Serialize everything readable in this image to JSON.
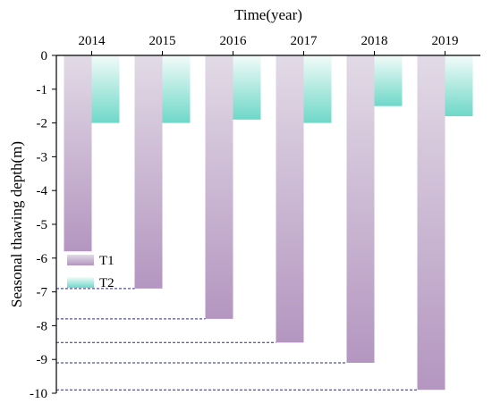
{
  "chart_data": {
    "type": "bar",
    "title": "",
    "xlabel": "Time(year)",
    "ylabel": "Seasonal thawing depth(m)",
    "x_axis_position": "top",
    "categories": [
      "2014",
      "2015",
      "2016",
      "2017",
      "2018",
      "2019"
    ],
    "ylim": [
      -10,
      0
    ],
    "yticks": [
      0,
      -1,
      -2,
      -3,
      -4,
      -5,
      -6,
      -7,
      -8,
      -9,
      -10
    ],
    "ytick_labels": [
      "0",
      "-1",
      "-2",
      "-3",
      "-4",
      "-5",
      "-6",
      "-7",
      "-8",
      "-9",
      "-10"
    ],
    "grid": false,
    "legend_position": "bottom-left",
    "series": [
      {
        "name": "T1",
        "values": [
          -5.8,
          -6.9,
          -7.8,
          -8.5,
          -9.1,
          -9.9
        ],
        "color_top": "#e2dae6",
        "color_bottom": "#b496c0"
      },
      {
        "name": "T2",
        "values": [
          -2.0,
          -2.0,
          -1.9,
          -2.0,
          -1.5,
          -1.8
        ],
        "color_top": "#f2fbf9",
        "color_bottom": "#6ed8c8"
      }
    ],
    "reference_lines": {
      "style": "dashed",
      "color": "#2a2a80",
      "from": "y-axis",
      "to": "bar-bottom",
      "values": [
        -6.9,
        -7.8,
        -8.5,
        -9.1,
        -9.9
      ]
    }
  }
}
